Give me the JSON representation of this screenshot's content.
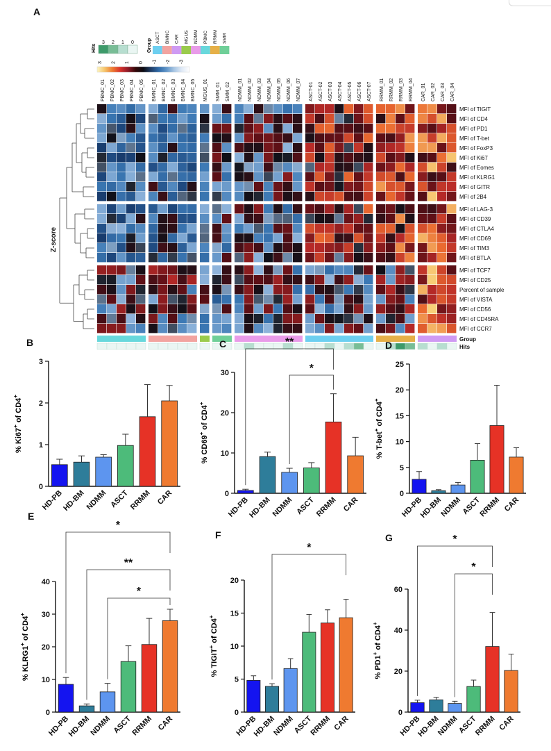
{
  "heatmap": {
    "panel_label": "A",
    "hits_legend": {
      "title": "Hits",
      "values": [
        "3",
        "2",
        "1",
        "0"
      ],
      "colors": [
        "#3d9a6a",
        "#78bd96",
        "#b7ded0",
        "#eaf6f3"
      ]
    },
    "group_legend": {
      "title": "Group",
      "labels": [
        "ASCT",
        "BMNC",
        "CAR",
        "MGUS",
        "NDMM",
        "PBMC",
        "RRMM",
        "SMM"
      ],
      "colors": [
        "#6dcff0",
        "#f2a4a0",
        "#cf9af3",
        "#9acb4c",
        "#e99be9",
        "#68d8dc",
        "#e6b048",
        "#6fcf98"
      ]
    },
    "zscore_scale": {
      "labels": [
        "3",
        "2",
        "1",
        "0",
        "-1",
        "-2",
        "-3"
      ],
      "colors": [
        "#fdf5c2",
        "#f6c46a",
        "#ee7a32",
        "#d8322c",
        "#8f1a28",
        "#330808",
        "#0a0a12",
        "#1f3d68",
        "#2f6aa8",
        "#5f94c8",
        "#a8c6e4",
        "#dfe9f6",
        "#ffffff"
      ]
    },
    "ylabel": "Z-score",
    "samples": [
      "PBMC_01",
      "PBMC_02",
      "PBMC_03",
      "PBMC_04",
      "PBMC_05",
      "BMNC_01",
      "BMNC_02",
      "BMNC_03",
      "BMNC_04",
      "BMNC_05",
      "MGUS_01",
      "SMM_01",
      "SMM_02",
      "NDMM_01",
      "NDMM_02",
      "NDMM_03",
      "NDMM_04",
      "NDMM_05",
      "NDMM_06",
      "NDMM_07",
      "ASCT-01",
      "ASCT-02",
      "ASCT-03",
      "ASCT-04",
      "ASCT-05",
      "ASCT-06",
      "ASCT-07",
      "RRMM_01",
      "RRMM_02",
      "RRMM_03",
      "RRMM_04",
      "CAR_01",
      "CAR_02",
      "CAR_03",
      "CAR_04"
    ],
    "sample_groups": [
      "PBMC",
      "PBMC",
      "PBMC",
      "PBMC",
      "PBMC",
      "BMNC",
      "BMNC",
      "BMNC",
      "BMNC",
      "BMNC",
      "MGUS",
      "SMM",
      "SMM",
      "NDMM",
      "NDMM",
      "NDMM",
      "NDMM",
      "NDMM",
      "NDMM",
      "NDMM",
      "ASCT",
      "ASCT",
      "ASCT",
      "ASCT",
      "ASCT",
      "ASCT",
      "ASCT",
      "RRMM",
      "RRMM",
      "RRMM",
      "RRMM",
      "CAR",
      "CAR",
      "CAR",
      "CAR"
    ],
    "hits": [
      0,
      0,
      0,
      0,
      0,
      0,
      0,
      0,
      0,
      0,
      0,
      0,
      0,
      0,
      1,
      0,
      0,
      0,
      1,
      0,
      0,
      0,
      1,
      0,
      1,
      2,
      0,
      0,
      1,
      3,
      2,
      1,
      0,
      1,
      0
    ],
    "rows": [
      "MFI of TIGIT",
      "MFI of CD4",
      "MFI of PD1",
      "MFI of T-bet",
      "MFI of FoxP3",
      "MFI of Ki67",
      "MFI of Eomes",
      "MFI of KLRG1",
      "MFI of GITR",
      "MFI of 2B4",
      "MFI of LAG-3",
      "MFI of CD39",
      "MFI of CTLA4",
      "MFI of CD69",
      "MFI of TIM3",
      "MFI of BTLA",
      "MFI of TCF7",
      "MFI of CD25",
      "Percent of sample",
      "MFI of VISTA",
      "MFI of CD56",
      "MFI of CD45RA",
      "MFI of CCR7"
    ],
    "row_clusters": [
      10,
      6,
      7
    ],
    "col_clusters": [
      5,
      5,
      1,
      2,
      7,
      7,
      4,
      4
    ],
    "annotation_labels": {
      "group": "Group",
      "hits": "Hits"
    }
  },
  "chart_data": [
    {
      "type": "bar",
      "panel": "B",
      "ylabel_main": "% Ki67",
      "ylabel_sup": "+",
      "ylabel_tail": " of CD4",
      "ylabel_tail_sup": "+",
      "categories": [
        "HD-PB",
        "HD-BM",
        "NDMM",
        "ASCT",
        "RRMM",
        "CAR"
      ],
      "values": [
        0.52,
        0.58,
        0.7,
        0.98,
        1.67,
        2.05
      ],
      "errors": [
        0.13,
        0.15,
        0.06,
        0.27,
        0.77,
        0.37
      ],
      "ylim": [
        0,
        3
      ],
      "yticks": [
        0,
        1,
        2,
        3
      ],
      "significance": []
    },
    {
      "type": "bar",
      "panel": "C",
      "ylabel_main": "% CD69",
      "ylabel_sup": "+",
      "ylabel_tail": " of CD4",
      "ylabel_tail_sup": "+",
      "categories": [
        "HD-PB",
        "HD-BM",
        "NDMM",
        "ASCT",
        "RRMM",
        "CAR"
      ],
      "values": [
        0.7,
        9.1,
        5.2,
        6.3,
        17.7,
        9.3
      ],
      "errors": [
        0.3,
        1.1,
        1.0,
        1.3,
        7.0,
        4.6
      ],
      "ylim": [
        0,
        30
      ],
      "yticks": [
        0,
        10,
        20,
        30
      ],
      "significance": [
        {
          "from": 0,
          "to": 4,
          "label": "**"
        },
        {
          "from": 2,
          "to": 4,
          "label": "*"
        }
      ]
    },
    {
      "type": "bar",
      "panel": "D",
      "ylabel_main": "% T-bet",
      "ylabel_sup": "+",
      "ylabel_tail": " of CD4",
      "ylabel_tail_sup": "+",
      "categories": [
        "HD-PB",
        "HD-BM",
        "NDMM",
        "ASCT",
        "RRMM",
        "CAR"
      ],
      "values": [
        2.7,
        0.5,
        1.6,
        6.4,
        13.1,
        7.0
      ],
      "errors": [
        1.5,
        0.2,
        0.5,
        3.2,
        7.8,
        1.8
      ],
      "ylim": [
        0,
        25
      ],
      "yticks": [
        0,
        5,
        10,
        15,
        20,
        25
      ],
      "significance": []
    },
    {
      "type": "bar",
      "panel": "E",
      "ylabel_main": "% KLRG1",
      "ylabel_sup": "+",
      "ylabel_tail": " of CD4",
      "ylabel_tail_sup": "+",
      "categories": [
        "HD-PB",
        "HD-BM",
        "NDMM",
        "ASCT",
        "RRMM",
        "CAR"
      ],
      "values": [
        8.5,
        1.9,
        6.2,
        15.5,
        20.7,
        28.0
      ],
      "errors": [
        2.1,
        0.6,
        2.6,
        4.8,
        8.0,
        3.5
      ],
      "ylim": [
        0,
        40
      ],
      "yticks": [
        0,
        10,
        20,
        30,
        40
      ],
      "significance": [
        {
          "from": 0,
          "to": 5,
          "label": "*"
        },
        {
          "from": 1,
          "to": 5,
          "label": "**"
        },
        {
          "from": 2,
          "to": 5,
          "label": "*"
        }
      ]
    },
    {
      "type": "bar",
      "panel": "F",
      "ylabel_main": "% TIGIT",
      "ylabel_sup": "+",
      "ylabel_tail": " of CD4",
      "ylabel_tail_sup": "+",
      "categories": [
        "HD-PB",
        "HD-BM",
        "NDMM",
        "ASCT",
        "RRMM",
        "CAR"
      ],
      "values": [
        4.8,
        3.9,
        6.6,
        12.1,
        13.5,
        14.3
      ],
      "errors": [
        0.7,
        0.4,
        1.5,
        2.7,
        2.0,
        2.8
      ],
      "ylim": [
        0,
        20
      ],
      "yticks": [
        0,
        5,
        10,
        15,
        20
      ],
      "significance": [
        {
          "from": 1,
          "to": 5,
          "label": "*"
        }
      ]
    },
    {
      "type": "bar",
      "panel": "G",
      "ylabel_main": "% PD1",
      "ylabel_sup": "+",
      "ylabel_tail": " of CD4",
      "ylabel_tail_sup": "+",
      "categories": [
        "HD-PB",
        "HD-BM",
        "NDMM",
        "ASCT",
        "RRMM",
        "CAR"
      ],
      "values": [
        4.6,
        6.0,
        4.2,
        12.5,
        32.0,
        20.3
      ],
      "errors": [
        1.2,
        1.2,
        1.1,
        3.1,
        16.6,
        8.0
      ],
      "ylim": [
        0,
        60
      ],
      "yticks": [
        0,
        20,
        40,
        60
      ],
      "significance": [
        {
          "from": 0,
          "to": 4,
          "label": "*"
        },
        {
          "from": 2,
          "to": 4,
          "label": "*"
        }
      ]
    }
  ],
  "bar_colors": [
    "#1414f0",
    "#2e7d9a",
    "#5d95ef",
    "#4dbb7a",
    "#e63226",
    "#ef7a30"
  ]
}
